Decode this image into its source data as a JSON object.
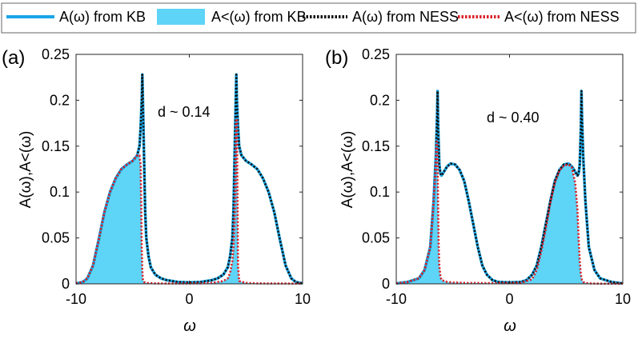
{
  "legend": {
    "items": [
      {
        "label": "A(ω) from KB",
        "style": "line",
        "color": "#1aa6e6"
      },
      {
        "label": "A<(ω) from KB",
        "style": "fill",
        "color": "#5ed4f7"
      },
      {
        "label": "A(ω) from NESS",
        "style": "dotted",
        "color": "#111111"
      },
      {
        "label": "A<(ω) from NESS",
        "style": "dotted",
        "color": "#d9222a"
      }
    ]
  },
  "chart_data": [
    {
      "type": "line",
      "panel_label": "(a)",
      "annotation": "d ~ 0.14",
      "xlabel": "ω",
      "ylabel": "A(ω),A<(ω)",
      "xlim": [
        -10,
        10
      ],
      "ylim": [
        0,
        0.25
      ],
      "xticks": [
        "-10",
        "0",
        "10"
      ],
      "yticks": [
        "0",
        "0.05",
        "0.1",
        "0.15",
        "0.2",
        "0.25"
      ],
      "series": [
        {
          "name": "A(ω) from KB",
          "x": [
            -10,
            -9.4,
            -9,
            -8.5,
            -8,
            -7.5,
            -7,
            -6.5,
            -6,
            -5.5,
            -5,
            -4.6,
            -4.4,
            -4.3,
            -4.2,
            -4.15,
            -4.1,
            -4.0,
            -3.9,
            -3.8,
            -3.6,
            -3.4,
            -3,
            -2.5,
            -2,
            -1,
            0,
            1,
            2,
            2.5,
            3,
            3.4,
            3.6,
            3.8,
            3.9,
            4.0,
            4.1,
            4.15,
            4.2,
            4.3,
            4.4,
            4.6,
            5,
            5.5,
            6,
            6.5,
            7,
            7.5,
            8,
            8.5,
            9,
            9.4,
            10
          ],
          "y": [
            0.0005,
            0.002,
            0.006,
            0.02,
            0.048,
            0.078,
            0.1,
            0.115,
            0.125,
            0.13,
            0.134,
            0.14,
            0.15,
            0.17,
            0.2,
            0.228,
            0.2,
            0.14,
            0.08,
            0.05,
            0.03,
            0.018,
            0.01,
            0.006,
            0.004,
            0.002,
            0.0015,
            0.002,
            0.004,
            0.006,
            0.01,
            0.018,
            0.03,
            0.05,
            0.08,
            0.14,
            0.2,
            0.228,
            0.2,
            0.17,
            0.15,
            0.14,
            0.134,
            0.13,
            0.125,
            0.115,
            0.1,
            0.078,
            0.048,
            0.02,
            0.006,
            0.002,
            0.0005
          ]
        },
        {
          "name": "A<(ω) from KB",
          "x": [
            -10,
            -9.4,
            -9,
            -8.5,
            -8,
            -7.5,
            -7,
            -6.5,
            -6,
            -5.5,
            -5,
            -4.6,
            -4.4,
            -4.3,
            -4.25,
            -4.2,
            -4.15,
            -4.1,
            -4.0,
            -3.8,
            -3,
            -2,
            -1,
            0,
            1,
            2,
            3,
            3.4,
            3.6,
            3.8,
            3.9,
            4.0,
            4.05,
            4.1,
            4.15,
            4.2,
            4.25,
            4.3,
            4.4,
            5,
            6,
            7,
            8,
            9,
            10
          ],
          "y": [
            0.0005,
            0.002,
            0.006,
            0.02,
            0.048,
            0.078,
            0.1,
            0.115,
            0.125,
            0.13,
            0.134,
            0.14,
            0.14,
            0.13,
            0.09,
            0.04,
            0.015,
            0.005,
            0.002,
            0.001,
            0.0005,
            0.0004,
            0.0004,
            0.0004,
            0.0005,
            0.001,
            0.003,
            0.006,
            0.012,
            0.025,
            0.04,
            0.07,
            0.1,
            0.14,
            0.18,
            0.178,
            0.1,
            0.02,
            0.003,
            0.001,
            0.0005,
            0.0004,
            0.0004,
            0.0003,
            0.0002
          ]
        }
      ]
    },
    {
      "type": "line",
      "panel_label": "(b)",
      "annotation": "d ~ 0.40",
      "xlabel": "ω",
      "ylabel": "A(ω),A<(ω)",
      "xlim": [
        -10,
        10
      ],
      "ylim": [
        0,
        0.25
      ],
      "xticks": [
        "-10",
        "0",
        "10"
      ],
      "yticks": [
        "0",
        "0.05",
        "0.1",
        "0.15",
        "0.2",
        "0.25"
      ],
      "series": [
        {
          "name": "A(ω) from KB",
          "x": [
            -10,
            -9,
            -8,
            -7.5,
            -7,
            -6.7,
            -6.5,
            -6.4,
            -6.35,
            -6.3,
            -6.2,
            -6.1,
            -6,
            -5.8,
            -5.5,
            -5.2,
            -4.8,
            -4.4,
            -4,
            -3.6,
            -3.2,
            -2.8,
            -2.4,
            -2,
            -1.5,
            -1,
            0,
            1,
            1.5,
            2,
            2.4,
            2.8,
            3.2,
            3.6,
            4,
            4.4,
            4.8,
            5.2,
            5.5,
            5.8,
            6,
            6.1,
            6.2,
            6.3,
            6.35,
            6.4,
            6.5,
            6.7,
            7,
            7.5,
            8,
            9,
            10
          ],
          "y": [
            0.0005,
            0.002,
            0.006,
            0.015,
            0.04,
            0.09,
            0.14,
            0.18,
            0.21,
            0.17,
            0.13,
            0.12,
            0.118,
            0.122,
            0.128,
            0.131,
            0.13,
            0.124,
            0.112,
            0.09,
            0.065,
            0.04,
            0.02,
            0.01,
            0.004,
            0.002,
            0.0015,
            0.002,
            0.004,
            0.01,
            0.02,
            0.04,
            0.065,
            0.09,
            0.112,
            0.124,
            0.13,
            0.131,
            0.128,
            0.122,
            0.118,
            0.12,
            0.13,
            0.17,
            0.21,
            0.18,
            0.14,
            0.09,
            0.04,
            0.015,
            0.006,
            0.002,
            0.0005
          ]
        },
        {
          "name": "A<(ω) from KB",
          "x": [
            -10,
            -9,
            -8,
            -7.5,
            -7,
            -6.8,
            -6.6,
            -6.5,
            -6.45,
            -6.4,
            -6.35,
            -6.3,
            -6.25,
            -6.2,
            -6.1,
            -6,
            -5.5,
            -5,
            -4,
            -2,
            0,
            1,
            2,
            2.4,
            2.8,
            3.2,
            3.6,
            4,
            4.4,
            4.8,
            5.2,
            5.5,
            5.8,
            6,
            6.1,
            6.2,
            6.3,
            6.4,
            6.5,
            6.7,
            7,
            8,
            10
          ],
          "y": [
            0.0005,
            0.002,
            0.006,
            0.015,
            0.04,
            0.07,
            0.11,
            0.135,
            0.15,
            0.155,
            0.13,
            0.08,
            0.04,
            0.02,
            0.008,
            0.004,
            0.002,
            0.0015,
            0.001,
            0.0008,
            0.0008,
            0.001,
            0.005,
            0.015,
            0.035,
            0.06,
            0.088,
            0.11,
            0.123,
            0.129,
            0.13,
            0.127,
            0.11,
            0.08,
            0.05,
            0.025,
            0.01,
            0.004,
            0.002,
            0.001,
            0.0005,
            0.0002,
            0.0001
          ]
        }
      ]
    }
  ]
}
